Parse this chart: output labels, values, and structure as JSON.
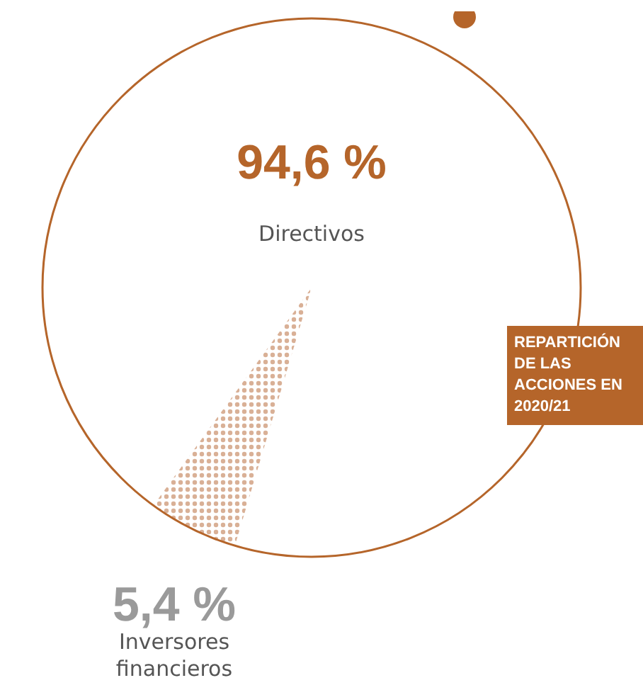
{
  "chart_data": {
    "type": "pie",
    "title": "REPARTICIÓN DE LAS ACCIONES EN 2020/21",
    "categories": [
      "Directivos",
      "Inversores financieros"
    ],
    "values": [
      94.6,
      5.4
    ],
    "colors": [
      "#ffffff",
      "#d9b096"
    ],
    "value_labels": [
      "94,6 %",
      "5,4 %"
    ],
    "legend": false
  }
}
